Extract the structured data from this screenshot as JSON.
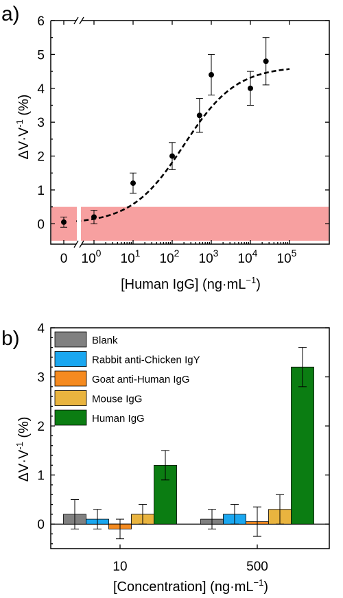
{
  "colors": {
    "band": "#f7a0a0",
    "fit": "#000000",
    "points": "#000000"
  },
  "chart_data": [
    {
      "panel_label": "a)",
      "type": "scatter",
      "x_scale": "log (with 0 shown on broken axis)",
      "xlabel_parts": [
        "[Human IgG] (ng·mL",
        "−1",
        ")"
      ],
      "ylabel_parts": [
        "ΔV·V",
        "-1",
        " (%)"
      ],
      "ylim": [
        -0.6,
        6
      ],
      "yticks": [
        "0",
        "1",
        "2",
        "3",
        "4",
        "5",
        "6"
      ],
      "xticks": [
        {
          "base": "0",
          "exp": ""
        },
        {
          "base": "10",
          "exp": "0"
        },
        {
          "base": "10",
          "exp": "1"
        },
        {
          "base": "10",
          "exp": "2"
        },
        {
          "base": "10",
          "exp": "3"
        },
        {
          "base": "10",
          "exp": "4"
        },
        {
          "base": "10",
          "exp": "5"
        }
      ],
      "noise_band": [
        -0.5,
        0.5
      ],
      "points": [
        {
          "x": 0,
          "y": 0.05,
          "err": 0.15
        },
        {
          "x": 1,
          "y": 0.2,
          "err": 0.2
        },
        {
          "x": 10,
          "y": 1.2,
          "err": 0.3
        },
        {
          "x": 100,
          "y": 2.0,
          "err": 0.4
        },
        {
          "x": 500,
          "y": 3.2,
          "err": 0.5
        },
        {
          "x": 1000,
          "y": 4.4,
          "err": 0.6
        },
        {
          "x": 10000,
          "y": 4.0,
          "err": 0.5
        },
        {
          "x": 25000,
          "y": 4.8,
          "err": 0.7
        }
      ],
      "fit": {
        "type": "sigmoid (dashed)",
        "bottom": 0.0,
        "top": 4.65,
        "log_ec50": 2.3,
        "slope": 0.65
      },
      "grid": false
    },
    {
      "panel_label": "b)",
      "type": "bar",
      "xlabel_parts": [
        "[Concentration] (ng·mL",
        "−1",
        ")"
      ],
      "ylabel_parts": [
        "ΔV·V",
        "-1",
        " (%)"
      ],
      "ylim": [
        -0.5,
        4
      ],
      "yticks": [
        "0",
        "1",
        "2",
        "3",
        "4"
      ],
      "categories": [
        "10",
        "500"
      ],
      "legend_position": "top-left",
      "series": [
        {
          "name": "Blank",
          "color": "#808080",
          "values": [
            0.2,
            0.1
          ],
          "errors": [
            0.3,
            0.2
          ]
        },
        {
          "name": "Rabbit anti-Chicken IgY",
          "color": "#1aa7f0",
          "values": [
            0.1,
            0.2
          ],
          "errors": [
            0.2,
            0.2
          ]
        },
        {
          "name": "Goat anti-Human IgG",
          "color": "#f58a1f",
          "values": [
            -0.1,
            0.05
          ],
          "errors": [
            0.2,
            0.3
          ]
        },
        {
          "name": "Mouse IgG",
          "color": "#e9b43f",
          "values": [
            0.2,
            0.3
          ],
          "errors": [
            0.2,
            0.3
          ]
        },
        {
          "name": "Human IgG",
          "color": "#0b7d12",
          "values": [
            1.2,
            3.2
          ],
          "errors": [
            0.3,
            0.4
          ]
        }
      ],
      "grid": false
    }
  ]
}
